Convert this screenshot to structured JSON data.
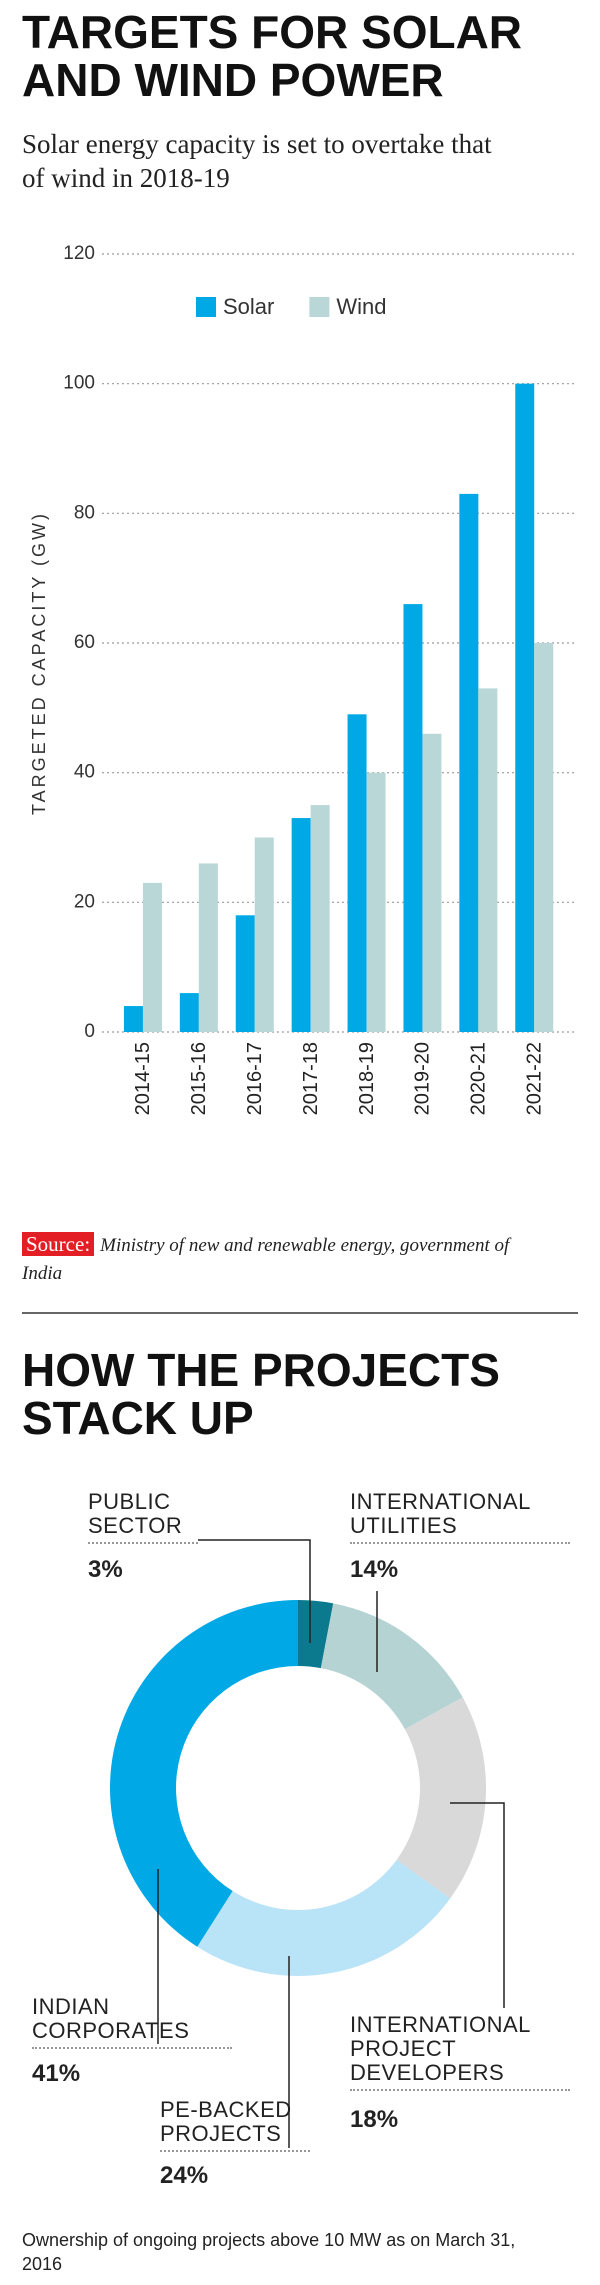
{
  "chart_data": [
    {
      "type": "bar",
      "title": "TARGETS FOR SOLAR AND WIND POWER",
      "subtitle": "Solar energy capacity is set to overtake that of wind in 2018-19",
      "ylabel": "TARGETED CAPACITY (GW)",
      "categories": [
        "2014-15",
        "2015-16",
        "2016-17",
        "2017-18",
        "2018-19",
        "2019-20",
        "2020-21",
        "2021-22"
      ],
      "series": [
        {
          "name": "Solar",
          "color": "#00a9e6",
          "values": [
            4,
            6,
            18,
            33,
            49,
            66,
            83,
            100
          ]
        },
        {
          "name": "Wind",
          "color": "#b9d7d6",
          "values": [
            23,
            26,
            30,
            35,
            40,
            46,
            53,
            60
          ]
        }
      ],
      "ylim": [
        0,
        120
      ],
      "yticks": [
        0,
        20,
        40,
        60,
        80,
        100,
        120
      ],
      "grid": true,
      "legend": "top"
    },
    {
      "type": "donut",
      "title": "HOW THE PROJECTS STACK UP",
      "categories": [
        "PUBLIC SECTOR",
        "INTERNATIONAL UTILITIES",
        "INTERNATIONAL PROJECT DEVELOPERS",
        "PE-BACKED PROJECTS",
        "INDIAN CORPORATES"
      ],
      "values": [
        3,
        14,
        18,
        24,
        41
      ],
      "value_labels": [
        "3%",
        "14%",
        "18%",
        "24%",
        "41%"
      ],
      "colors": [
        "#0b7a8f",
        "#b6d3d3",
        "#d9d9d9",
        "#b9e3f7",
        "#00a9e6"
      ],
      "note": "Ownership of ongoing projects above 10 MW as on March 31, 2016"
    }
  ],
  "source": {
    "label": "Source:",
    "text": "Ministry of new and renewable energy, government of India"
  }
}
